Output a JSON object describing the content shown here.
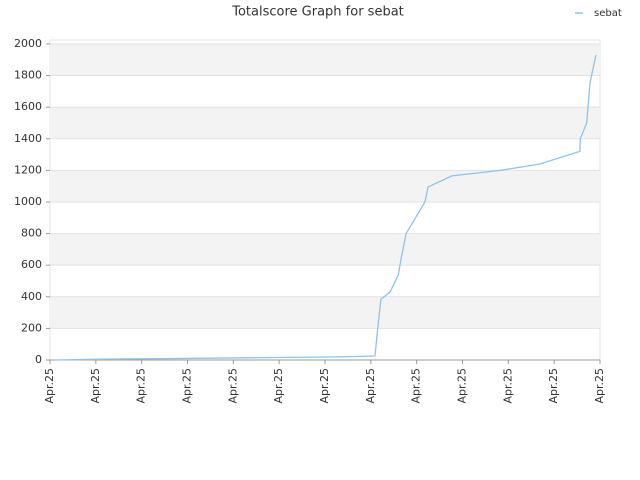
{
  "chart_data": {
    "type": "line",
    "title": "Totalscore Graph for sebat",
    "series": [
      {
        "name": "sebat",
        "color": "#8ec3ec",
        "x": [
          0.11,
          1.09,
          2.95,
          4.63,
          6.28,
          7.09,
          7.15,
          7.22,
          7.42,
          7.6,
          7.66,
          7.77,
          8.18,
          8.25,
          8.77,
          9.82,
          10.69,
          11.56,
          11.57,
          11.71,
          11.78,
          11.91
        ],
        "values": [
          0,
          5,
          10,
          15,
          20,
          25,
          200,
          385,
          430,
          540,
          640,
          800,
          1000,
          1095,
          1165,
          1200,
          1240,
          1320,
          1400,
          1500,
          1750,
          1930
        ]
      }
    ],
    "xlim": [
      0,
      12
    ],
    "xticks": [
      {
        "value": 0,
        "label": "Apr.25"
      },
      {
        "value": 1,
        "label": "Apr.25"
      },
      {
        "value": 2,
        "label": "Apr.25"
      },
      {
        "value": 3,
        "label": "Apr.25"
      },
      {
        "value": 4,
        "label": "Apr.25"
      },
      {
        "value": 5,
        "label": "Apr.25"
      },
      {
        "value": 6,
        "label": "Apr.25"
      },
      {
        "value": 7,
        "label": "Apr.25"
      },
      {
        "value": 8,
        "label": "Apr.25"
      },
      {
        "value": 9,
        "label": "Apr.25"
      },
      {
        "value": 10,
        "label": "Apr.25"
      },
      {
        "value": 11,
        "label": "Apr.25"
      },
      {
        "value": 12,
        "label": "Apr.25"
      }
    ],
    "ylim": [
      0,
      2025
    ],
    "yticks": [
      0,
      200,
      400,
      600,
      800,
      1000,
      1200,
      1400,
      1600,
      1800,
      2000
    ],
    "grid": true,
    "legend": "top-right"
  }
}
